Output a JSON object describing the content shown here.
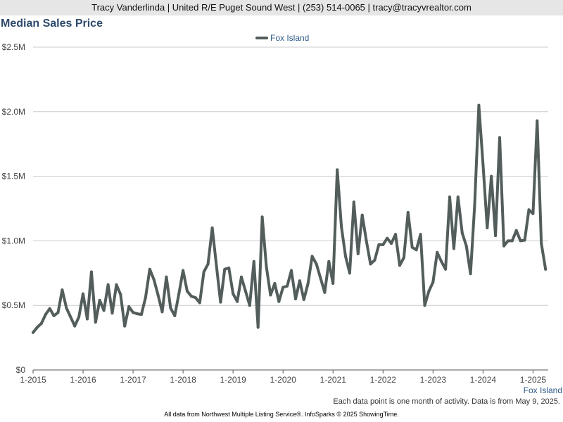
{
  "header": {
    "contact_line": "Tracy Vanderlinda | United R/E Puget Sound West | (253) 514-0065 | tracy@tracyvrealtor.com"
  },
  "footer": {
    "note": "Each data point is one month of activity. Data is from May 9, 2025.",
    "credit": "All data from Northwest Multiple Listing Service®. InfoSparks © 2025 ShowingTime."
  },
  "chart_data": {
    "type": "line",
    "title": "Median Sales Price",
    "xlabel": "",
    "ylabel": "",
    "region_label": "Fox Island",
    "ylim": [
      0,
      2500000
    ],
    "y_ticks": [
      {
        "value": 0,
        "label": "$0"
      },
      {
        "value": 500000,
        "label": "$0.5M"
      },
      {
        "value": 1000000,
        "label": "$1.0M"
      },
      {
        "value": 1500000,
        "label": "$1.5M"
      },
      {
        "value": 2000000,
        "label": "$2.0M"
      },
      {
        "value": 2500000,
        "label": "$2.5M"
      }
    ],
    "x_ticks": [
      "1-2015",
      "1-2016",
      "1-2017",
      "1-2018",
      "1-2019",
      "1-2020",
      "1-2021",
      "1-2022",
      "1-2023",
      "1-2024",
      "1-2025"
    ],
    "x_start": "1-2015",
    "grid": true,
    "legend_position": "top-center",
    "colors": {
      "line": "#535d5b",
      "title": "#2e4a6b",
      "label": "#2e5a8a",
      "grid": "#cccccc"
    },
    "series": [
      {
        "name": "Fox Island",
        "values": [
          290000,
          330000,
          360000,
          430000,
          475000,
          420000,
          445000,
          620000,
          480000,
          410000,
          340000,
          410000,
          590000,
          395000,
          760000,
          370000,
          540000,
          460000,
          660000,
          440000,
          660000,
          585000,
          340000,
          490000,
          445000,
          435000,
          430000,
          560000,
          780000,
          700000,
          580000,
          450000,
          720000,
          480000,
          420000,
          590000,
          770000,
          610000,
          570000,
          560000,
          520000,
          760000,
          820000,
          1100000,
          810000,
          525000,
          780000,
          790000,
          590000,
          530000,
          720000,
          610000,
          500000,
          840000,
          330000,
          1185000,
          800000,
          580000,
          670000,
          530000,
          640000,
          650000,
          770000,
          550000,
          690000,
          545000,
          670000,
          880000,
          820000,
          710000,
          600000,
          840000,
          670000,
          1550000,
          1110000,
          880000,
          750000,
          1300000,
          900000,
          1200000,
          1000000,
          820000,
          850000,
          970000,
          970000,
          1020000,
          980000,
          1050000,
          810000,
          870000,
          1220000,
          950000,
          930000,
          1050000,
          500000,
          610000,
          680000,
          910000,
          840000,
          780000,
          1340000,
          940000,
          1340000,
          1060000,
          960000,
          745000,
          1280000,
          2050000,
          1590000,
          1100000,
          1500000,
          1040000,
          1800000,
          960000,
          1000000,
          1000000,
          1080000,
          1000000,
          1005000,
          1240000,
          1210000,
          1930000,
          980000,
          780000
        ]
      }
    ]
  }
}
